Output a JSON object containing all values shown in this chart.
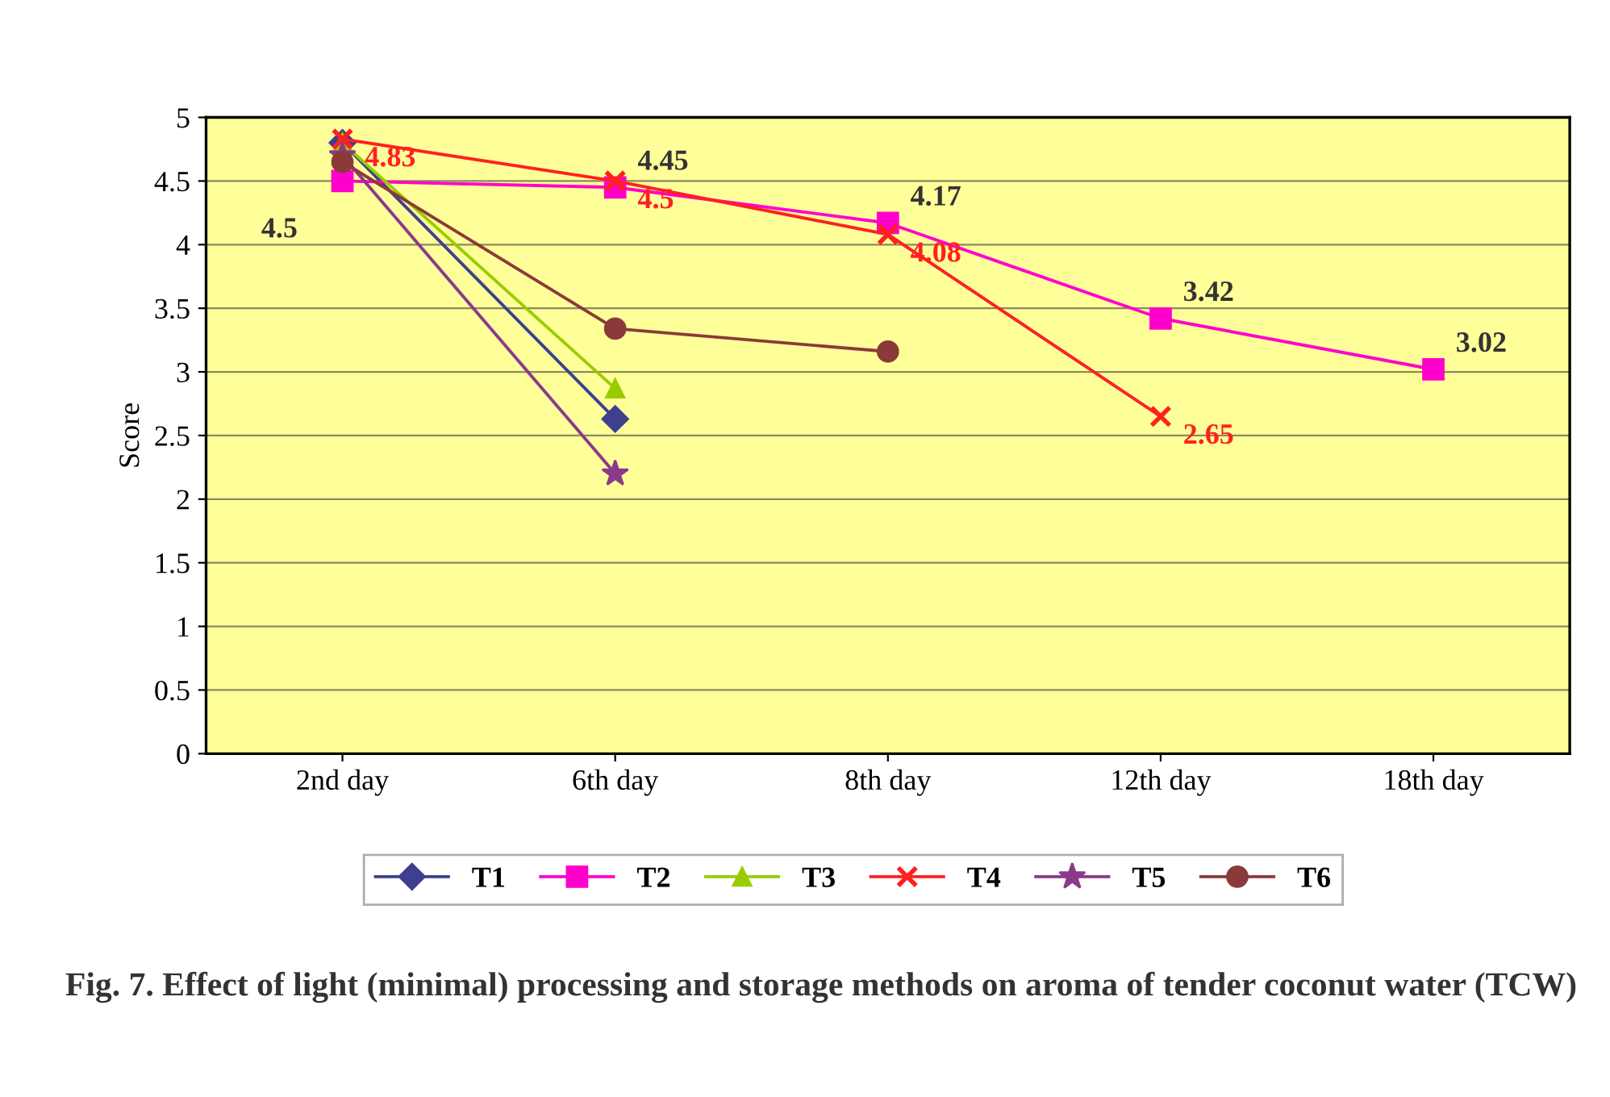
{
  "chart_data": {
    "type": "line",
    "title": "Fig. 7. Effect of light (minimal) processing and storage methods on aroma of tender coconut water (TCW)",
    "ylabel": "Score",
    "categories": [
      "2nd day",
      "6th day",
      "8th day",
      "12th day",
      "18th day"
    ],
    "series": [
      {
        "name": "T1",
        "color": "#3f3f8f",
        "marker": "diamond",
        "values": [
          4.8,
          2.63,
          null,
          null,
          null
        ]
      },
      {
        "name": "T2",
        "color": "#ff00cc",
        "marker": "square",
        "values": [
          4.5,
          4.45,
          4.17,
          3.42,
          3.02
        ],
        "value_labels": [
          "4.5",
          "4.45",
          "4.17",
          "3.42",
          "3.02"
        ]
      },
      {
        "name": "T3",
        "color": "#99cc00",
        "marker": "triangle",
        "values": [
          4.8,
          2.87,
          null,
          null,
          null
        ]
      },
      {
        "name": "T4",
        "color": "#ff2020",
        "marker": "cross",
        "values": [
          4.83,
          4.5,
          4.08,
          2.65,
          null
        ],
        "value_labels": [
          "4.83",
          "4.5",
          "4.08",
          "2.65",
          null
        ]
      },
      {
        "name": "T5",
        "color": "#8b3a8b",
        "marker": "star",
        "values": [
          4.7,
          2.2,
          null,
          null,
          null
        ]
      },
      {
        "name": "T6",
        "color": "#8b3a3a",
        "marker": "circle",
        "values": [
          4.65,
          3.34,
          3.16,
          null,
          null
        ]
      }
    ],
    "ylim": [
      0,
      5
    ],
    "yticks": [
      0,
      0.5,
      1,
      1.5,
      2,
      2.5,
      3,
      3.5,
      4,
      4.5,
      5
    ],
    "grid": "y",
    "legend": "bottom"
  }
}
